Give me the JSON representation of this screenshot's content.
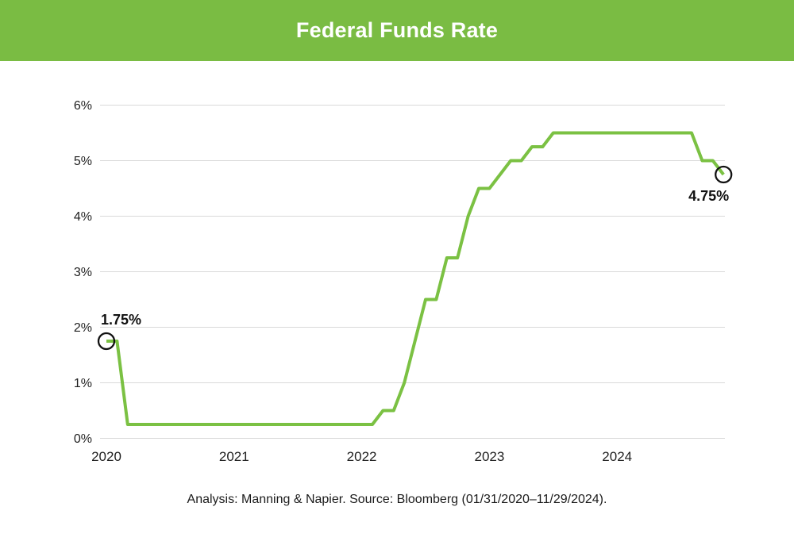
{
  "header": {
    "title": "Federal Funds Rate",
    "bg_color": "#7ABC43",
    "text_color": "#FFFFFF"
  },
  "caption": {
    "text": "Analysis: Manning & Napier. Source: Bloomberg (01/31/2020–11/29/2024).",
    "color": "#1B1B1B"
  },
  "chart_data": {
    "type": "line",
    "title": "Federal Funds Rate",
    "x_unit": "month",
    "x": [
      "2020-01",
      "2020-02",
      "2020-03",
      "2020-04",
      "2020-05",
      "2020-06",
      "2020-07",
      "2020-08",
      "2020-09",
      "2020-10",
      "2020-11",
      "2020-12",
      "2021-01",
      "2021-02",
      "2021-03",
      "2021-04",
      "2021-05",
      "2021-06",
      "2021-07",
      "2021-08",
      "2021-09",
      "2021-10",
      "2021-11",
      "2021-12",
      "2022-01",
      "2022-02",
      "2022-03",
      "2022-04",
      "2022-05",
      "2022-06",
      "2022-07",
      "2022-08",
      "2022-09",
      "2022-10",
      "2022-11",
      "2022-12",
      "2023-01",
      "2023-02",
      "2023-03",
      "2023-04",
      "2023-05",
      "2023-06",
      "2023-07",
      "2023-08",
      "2023-09",
      "2023-10",
      "2023-11",
      "2023-12",
      "2024-01",
      "2024-02",
      "2024-03",
      "2024-04",
      "2024-05",
      "2024-06",
      "2024-07",
      "2024-08",
      "2024-09",
      "2024-10",
      "2024-11"
    ],
    "values": [
      1.75,
      1.75,
      0.25,
      0.25,
      0.25,
      0.25,
      0.25,
      0.25,
      0.25,
      0.25,
      0.25,
      0.25,
      0.25,
      0.25,
      0.25,
      0.25,
      0.25,
      0.25,
      0.25,
      0.25,
      0.25,
      0.25,
      0.25,
      0.25,
      0.25,
      0.25,
      0.5,
      0.5,
      1.0,
      1.75,
      2.5,
      2.5,
      3.25,
      3.25,
      4.0,
      4.5,
      4.5,
      4.75,
      5.0,
      5.0,
      5.25,
      5.25,
      5.5,
      5.5,
      5.5,
      5.5,
      5.5,
      5.5,
      5.5,
      5.5,
      5.5,
      5.5,
      5.5,
      5.5,
      5.5,
      5.5,
      5.0,
      5.0,
      4.75
    ],
    "y_axis": {
      "min": 0,
      "max": 6,
      "tick_step": 1,
      "tick_labels": [
        "0%",
        "1%",
        "2%",
        "3%",
        "4%",
        "5%",
        "6%"
      ]
    },
    "x_axis": {
      "tick_labels": [
        "2020",
        "2021",
        "2022",
        "2023",
        "2024"
      ]
    },
    "grid": "horizontal",
    "legend": "none",
    "line_color": "#7BC143",
    "grid_color": "#D9D9D9",
    "label_color": "#1F1F1F",
    "marker_color": "#111111",
    "annotations": [
      {
        "x": "2020-01",
        "value": 1.75,
        "label": "1.75%",
        "marker": "open-circle",
        "position": "above-right"
      },
      {
        "x": "2024-11",
        "value": 4.75,
        "label": "4.75%",
        "marker": "open-circle",
        "position": "below-left"
      }
    ]
  }
}
